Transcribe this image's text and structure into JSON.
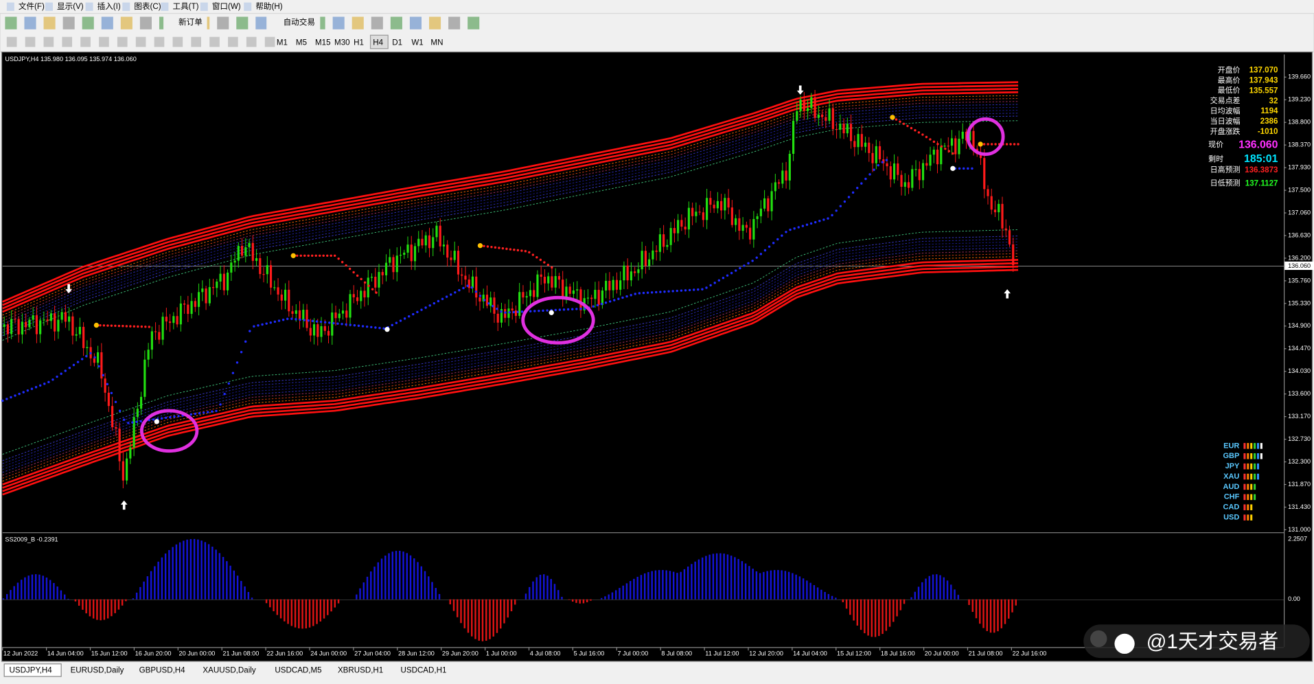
{
  "menu": [
    "文件(F)",
    "显示(V)",
    "插入(I)",
    "图表(C)",
    "工具(T)",
    "窗口(W)",
    "帮助(H)"
  ],
  "toolbar": {
    "new_order": "新订单",
    "auto_trade": "自动交易"
  },
  "timeframes": [
    "M1",
    "M5",
    "M15",
    "M30",
    "H1",
    "H4",
    "D1",
    "W1",
    "MN"
  ],
  "chart": {
    "header": "USDJPY,H4  135.980 136.095 135.974 136.060",
    "info": [
      {
        "label": "开盘价",
        "value": "137.070"
      },
      {
        "label": "最高价",
        "value": "137.943"
      },
      {
        "label": "最低价",
        "value": "135.557"
      },
      {
        "label": "交易点差",
        "value": "32"
      },
      {
        "label": "日均波幅",
        "value": "1194"
      },
      {
        "label": "当日波幅",
        "value": "2386"
      },
      {
        "label": "开盘涨跌",
        "value": "-1010"
      }
    ],
    "current_price_label": "现价",
    "current_price": "136.060",
    "timer_label": "剩时",
    "timer": "185:01",
    "high_forecast_label": "日高预测",
    "high_forecast": "136.3873",
    "low_forecast_label": "日低预测",
    "low_forecast": "137.1127",
    "currencies": [
      "EUR",
      "GBP",
      "JPY",
      "XAU",
      "AUD",
      "CHF",
      "CAD",
      "USD"
    ],
    "price_axis": [
      "139.660",
      "139.230",
      "138.800",
      "138.370",
      "137.930",
      "137.500",
      "137.060",
      "136.630",
      "136.200",
      "135.760",
      "135.330",
      "134.900",
      "134.470",
      "134.030",
      "133.600",
      "133.170",
      "132.730",
      "132.300",
      "131.870",
      "131.430",
      "131.000"
    ],
    "price_marker": "136.060",
    "indicator_label": "SS2009_B -0.2391",
    "indicator_axis": [
      "2.2507",
      "0.00"
    ],
    "time_axis": [
      "12 Jun 2022",
      "14 Jun 04:00",
      "15 Jun 12:00",
      "16 Jun 20:00",
      "20 Jun 00:00",
      "21 Jun 08:00",
      "22 Jun 16:00",
      "24 Jun 00:00",
      "27 Jun 04:00",
      "28 Jun 12:00",
      "29 Jun 20:00",
      "1 Jul 00:00",
      "4 Jul 08:00",
      "5 Jul 16:00",
      "7 Jul 00:00",
      "8 Jul 08:00",
      "11 Jul 12:00",
      "12 Jul 20:00",
      "14 Jul 04:00",
      "15 Jul 12:00",
      "18 Jul 16:00",
      "20 Jul 00:00",
      "21 Jul 08:00",
      "22 Jul 16:00"
    ]
  },
  "tabs": [
    "USDJPY,H4",
    "EURUSD,Daily",
    "GBPUSD,H4",
    "XAUUSD,Daily",
    "USDCAD,M5",
    "XBRUSD,H1",
    "USDCAD,H1"
  ],
  "watermark": "@1天才交易者"
}
